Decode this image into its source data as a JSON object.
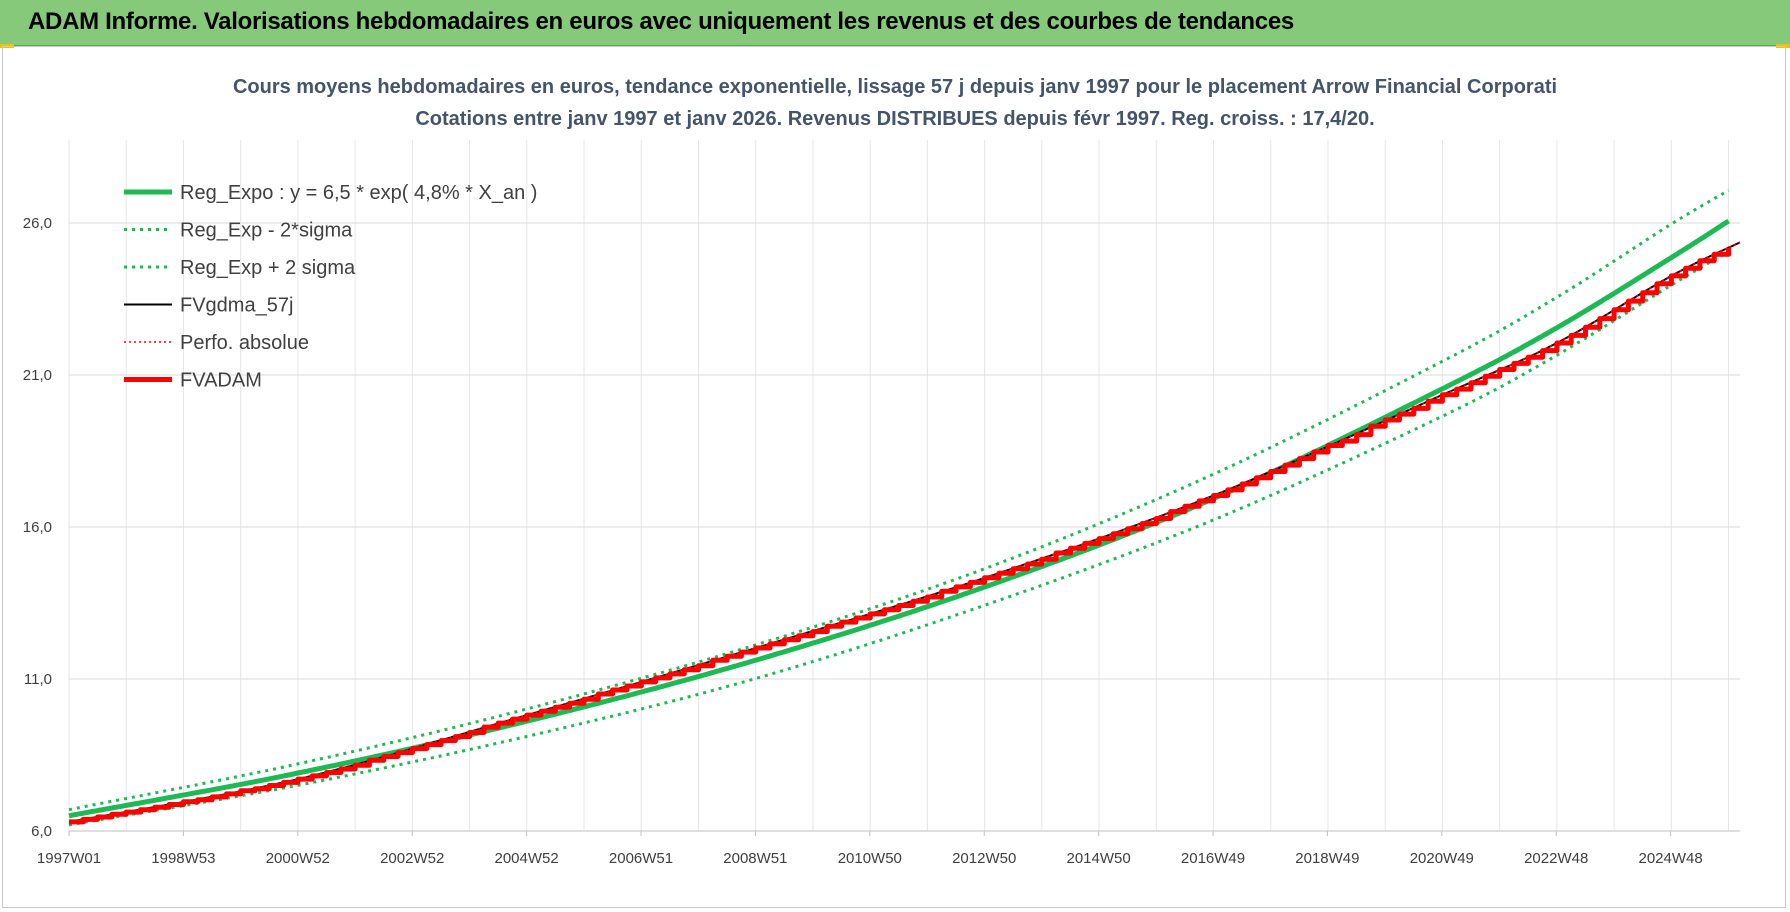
{
  "header": {
    "title": "ADAM Informe. Valorisations hebdomadaires en euros avec uniquement les revenus et des courbes de tendances"
  },
  "chart_data": {
    "type": "line",
    "title": "Cours moyens hebdomadaires en euros, tendance exponentielle, lissage 57 j depuis janv 1997 pour le placement Arrow Financial Corporati",
    "subtitle": "Cotations entre janv 1997 et janv 2026. Revenus DISTRIBUES depuis févr 1997. Reg. croiss. : 17,4/20.",
    "xlabel": "",
    "ylabel": "",
    "x_ticks": [
      "1997W01",
      "1998W53",
      "2000W52",
      "2002W52",
      "2004W52",
      "2006W51",
      "2008W51",
      "2010W50",
      "2012W50",
      "2014W50",
      "2016W49",
      "2018W49",
      "2020W49",
      "2022W48",
      "2024W48"
    ],
    "y_ticks": [
      "6,0",
      "11,0",
      "16,0",
      "21,0",
      "26,0"
    ],
    "ylim": [
      6,
      28
    ],
    "xlim": [
      1997.0,
      2026.2
    ],
    "grid": true,
    "legend_position": "top-left",
    "series": [
      {
        "name": "Reg_Expo : y = 6,5 * exp( 4,8% *  X_an )",
        "color": "#1db954",
        "style": "solid-thick",
        "x": [
          1997.0,
          2001.0,
          2005.0,
          2009.0,
          2013.0,
          2017.0,
          2021.0,
          2023.0,
          2025.0,
          2026.0
        ],
        "values": [
          6.5,
          7.9,
          9.6,
          11.6,
          14.0,
          16.9,
          20.5,
          22.5,
          24.8,
          26.0
        ]
      },
      {
        "name": "Reg_Exp - 2*sigma",
        "color": "#1db954",
        "style": "dotted",
        "x": [
          1997.0,
          2001.0,
          2005.0,
          2009.0,
          2013.0,
          2017.0,
          2021.0,
          2023.0,
          2025.0,
          2026.0
        ],
        "values": [
          6.2,
          7.5,
          9.1,
          11.0,
          13.4,
          16.2,
          19.6,
          21.6,
          23.9,
          25.0
        ]
      },
      {
        "name": "Reg_Exp + 2 sigma",
        "color": "#1db954",
        "style": "dotted",
        "x": [
          1997.0,
          2001.0,
          2005.0,
          2009.0,
          2013.0,
          2017.0,
          2021.0,
          2023.0,
          2025.0,
          2026.0
        ],
        "values": [
          6.7,
          8.2,
          10.0,
          12.1,
          14.6,
          17.7,
          21.4,
          23.5,
          25.9,
          27.0
        ]
      },
      {
        "name": "FVgdma_57j",
        "color": "#000000",
        "style": "solid",
        "x": [
          1997.0,
          2001.0,
          2005.0,
          2009.0,
          2013.0,
          2017.0,
          2021.0,
          2023.0,
          2025.0,
          2026.2
        ],
        "values": [
          6.3,
          7.7,
          9.8,
          12.0,
          14.3,
          17.0,
          20.3,
          22.0,
          24.2,
          25.3
        ]
      },
      {
        "name": "Perfo. absolue",
        "color": "#ff0000",
        "style": "dotted-thin",
        "x": [
          1997.0,
          2001.0,
          2005.0,
          2009.0,
          2013.0,
          2017.0,
          2021.0,
          2023.0,
          2025.0,
          2026.2
        ],
        "values": [
          6.3,
          7.7,
          9.8,
          12.0,
          14.3,
          17.0,
          20.3,
          22.0,
          24.2,
          25.3
        ]
      },
      {
        "name": "FVADAM",
        "color": "#ff0000",
        "style": "solid-thick",
        "x": [
          1997.0,
          2001.0,
          2005.0,
          2009.0,
          2013.0,
          2017.0,
          2021.0,
          2023.0,
          2025.0,
          2026.2
        ],
        "values": [
          6.3,
          7.7,
          9.8,
          12.0,
          14.3,
          17.0,
          20.3,
          22.0,
          24.2,
          25.3
        ]
      }
    ]
  }
}
